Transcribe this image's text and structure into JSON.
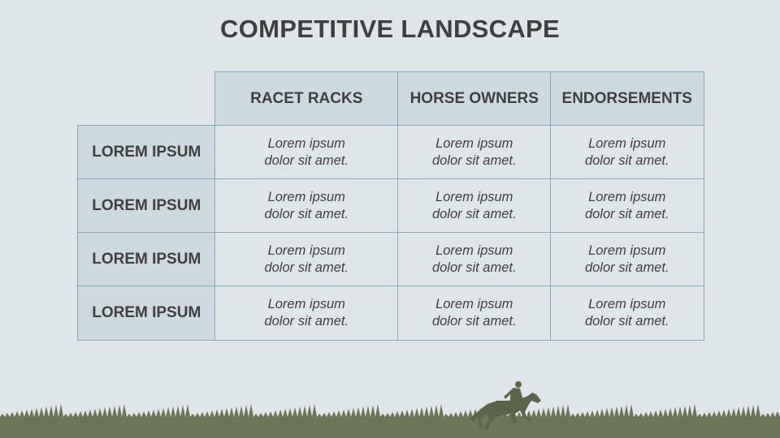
{
  "title": "COMPETITIVE LANDSCAPE",
  "columns": [
    "RACET RACKS",
    "HORSE OWNERS",
    "ENDORSEMENTS"
  ],
  "rows": [
    {
      "label": "LOREM IPSUM",
      "cells": [
        [
          "Lorem ipsum",
          "dolor sit amet."
        ],
        [
          "Lorem ipsum",
          "dolor sit amet."
        ],
        [
          "Lorem ipsum",
          "dolor sit amet."
        ]
      ]
    },
    {
      "label": "LOREM IPSUM",
      "cells": [
        [
          "Lorem ipsum",
          "dolor sit amet."
        ],
        [
          "Lorem ipsum",
          "dolor sit amet."
        ],
        [
          "Lorem ipsum",
          "dolor sit amet."
        ]
      ]
    },
    {
      "label": "LOREM IPSUM",
      "cells": [
        [
          "Lorem ipsum",
          "dolor sit amet."
        ],
        [
          "Lorem ipsum",
          "dolor sit amet."
        ],
        [
          "Lorem ipsum",
          "dolor sit amet."
        ]
      ]
    },
    {
      "label": "LOREM IPSUM",
      "cells": [
        [
          "Lorem ipsum",
          "dolor sit amet."
        ],
        [
          "Lorem ipsum",
          "dolor sit amet."
        ],
        [
          "Lorem ipsum",
          "dolor sit amet."
        ]
      ]
    }
  ],
  "colors": {
    "background": "#dfe6ea",
    "header": "#ccd9df",
    "border": "#8aa8b4",
    "grass": "#6b7656",
    "text": "#3f3f3f"
  },
  "decoration": {
    "icon": "horse-and-jockey-icon"
  }
}
